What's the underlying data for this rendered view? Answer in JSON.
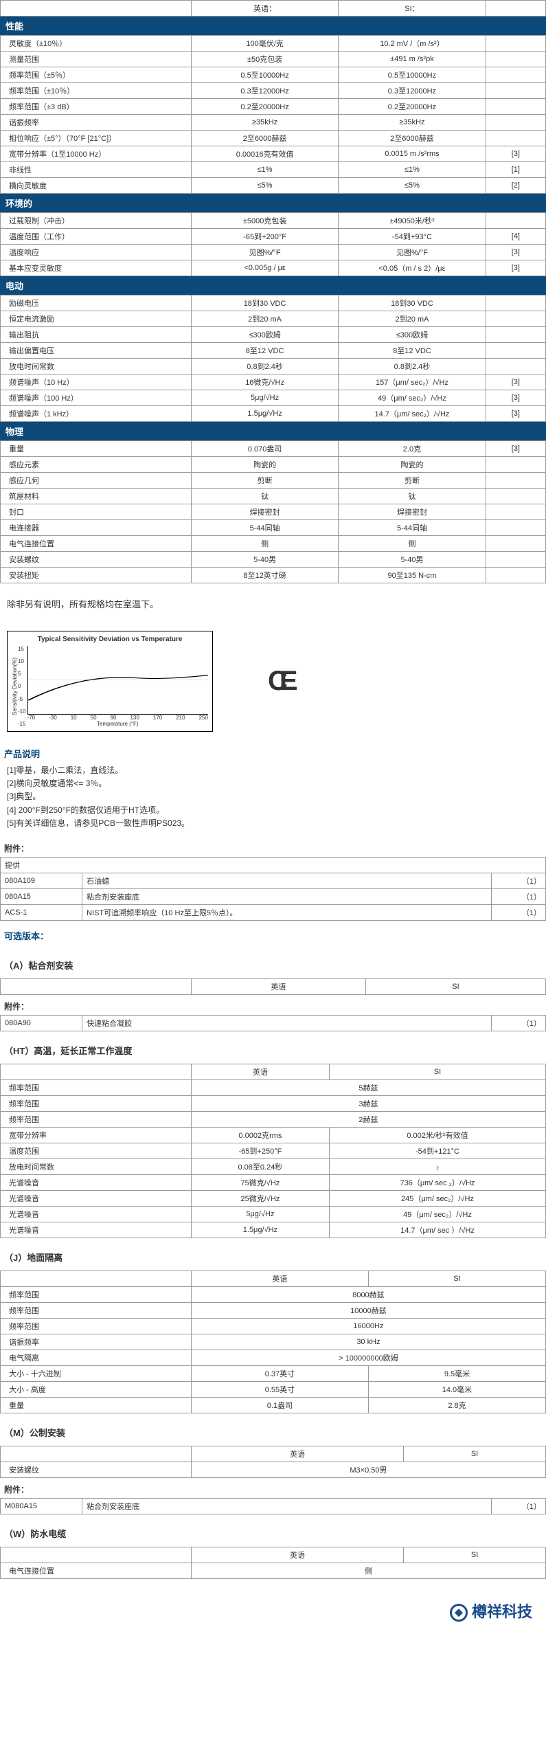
{
  "headers": {
    "en": "英语：",
    "si": "SI："
  },
  "sections": {
    "perf": "性能",
    "env": "环境的",
    "elec": "电动",
    "phys": "物理"
  },
  "perf": [
    {
      "l": "灵敏度（±10％）",
      "e": "100毫伏/克",
      "s": "10.2 mV /（m /s²）",
      "n": ""
    },
    {
      "l": "测量范围",
      "e": "±50克包装",
      "s": "±491 m /s²pk",
      "n": ""
    },
    {
      "l": "频率范围（±5％）",
      "e": "0.5至10000Hz",
      "s": "0.5至10000Hz",
      "n": ""
    },
    {
      "l": "频率范围（±10％）",
      "e": "0.3至12000Hz",
      "s": "0.3至12000Hz",
      "n": ""
    },
    {
      "l": "频率范围（±3 dB）",
      "e": "0.2至20000Hz",
      "s": "0.2至20000Hz",
      "n": ""
    },
    {
      "l": "谐振频率",
      "e": "≥35kHz",
      "s": "≥35kHz",
      "n": ""
    },
    {
      "l": "相位响应（±5°）（70°F [21°C]）",
      "e": "2至6000赫兹",
      "s": "2至6000赫兹",
      "n": ""
    },
    {
      "l": "宽带分辨率（1至10000 Hz）",
      "e": "0.00016克有效值",
      "s": "0.0015 m /s²rms",
      "n": "[3]"
    },
    {
      "l": "非线性",
      "e": "≤1%",
      "s": "≤1%",
      "n": "[1]"
    },
    {
      "l": "横向灵敏度",
      "e": "≤5%",
      "s": "≤5%",
      "n": "[2]"
    }
  ],
  "env": [
    {
      "l": "过载限制（冲击）",
      "e": "±5000克包装",
      "s": "±49050米/秒²",
      "n": ""
    },
    {
      "l": "温度范围（工作）",
      "e": "-65到+200°F",
      "s": "-54到+93°C",
      "n": "[4]"
    },
    {
      "l": "温度响应",
      "e": "见图%/°F",
      "s": "见图%/°F",
      "n": "[3]"
    },
    {
      "l": "基本应变灵敏度",
      "e": "<0.005g / με",
      "s": "<0.05（m / s 2）/με",
      "n": "[3]"
    }
  ],
  "elec": [
    {
      "l": "励磁电压",
      "e": "18到30 VDC",
      "s": "18到30 VDC",
      "n": ""
    },
    {
      "l": "恒定电流激励",
      "e": "2到20 mA",
      "s": "2到20 mA",
      "n": ""
    },
    {
      "l": "输出阻抗",
      "e": "≤300欧姆",
      "s": "≤300欧姆",
      "n": ""
    },
    {
      "l": "输出偏置电压",
      "e": "8至12 VDC",
      "s": "8至12 VDC",
      "n": ""
    },
    {
      "l": "放电时间常数",
      "e": "0.8到2.4秒",
      "s": "0.8到2.4秒",
      "n": ""
    },
    {
      "l": "频谱噪声（10 Hz）",
      "e": "16微克/√Hz",
      "s": "157（μm/ sec₂）/√Hz",
      "n": "[3]"
    },
    {
      "l": "频谱噪声（100 Hz）",
      "e": "5μg/√Hz",
      "s": "49（μm/ sec₂）/√Hz",
      "n": "[3]"
    },
    {
      "l": "频谱噪声（1 kHz）",
      "e": "1.5μg/√Hz",
      "s": "14.7（μm/ sec₂）/√Hz",
      "n": "[3]"
    }
  ],
  "phys": [
    {
      "l": "重量",
      "e": "0.070盎司",
      "s": "2.0克",
      "n": "[3]"
    },
    {
      "l": "感应元素",
      "e": "陶瓷的",
      "s": "陶瓷的",
      "n": ""
    },
    {
      "l": "感应几何",
      "e": "剪断",
      "s": "剪断",
      "n": ""
    },
    {
      "l": "筑屋材料",
      "e": "钛",
      "s": "钛",
      "n": ""
    },
    {
      "l": "封口",
      "e": "焊接密封",
      "s": "焊接密封",
      "n": ""
    },
    {
      "l": "电连接器",
      "e": "5-44同轴",
      "s": "5-44同轴",
      "n": ""
    },
    {
      "l": "电气连接位置",
      "e": "侧",
      "s": "侧",
      "n": ""
    },
    {
      "l": "安装螺纹",
      "e": "5-40男",
      "s": "5-40男",
      "n": ""
    },
    {
      "l": "安装扭矩",
      "e": "8至12英寸磅",
      "s": "90至135 N-cm",
      "n": ""
    }
  ],
  "note": "除非另有说明，所有规格均在室温下。",
  "chart": {
    "title": "Typical Sensitivity Deviation vs Temperature",
    "ylabel": "Sensitivity Deviation(%)",
    "xlabel": "Temperature (°F)",
    "yticks": [
      "15",
      "10",
      "5",
      "0",
      "-5",
      "-10",
      "-15"
    ],
    "xticks": [
      "-70",
      "-30",
      "10",
      "50",
      "90",
      "130",
      "170",
      "210",
      "250"
    ]
  },
  "ce": "CE",
  "prodNotesTitle": "产品说明",
  "prodNotes": [
    "[1]零基，最小二乘法，直线法。",
    "[2]横向灵敏度通常<= 3％。",
    "[3]典型。",
    "[4] 200°F到250°F的数据仅适用于HT选项。",
    "[5]有关详细信息，请参见PCB一致性声明PS023。"
  ],
  "accTitle": "附件：",
  "accHead": "提供",
  "acc": [
    {
      "p": "080A109",
      "d": "石油蜡",
      "q": "（1）"
    },
    {
      "p": "080A15",
      "d": "粘合剂安装座底",
      "q": "（1）"
    },
    {
      "p": "ACS-1",
      "d": "NIST可追溯频率响应（10 Hz至上限5％点）。",
      "q": "（1）"
    }
  ],
  "optTitle": "可选版本：",
  "verA": {
    "title": "（A）粘合剂安装",
    "headers": {
      "e": "英语",
      "s": "SI"
    },
    "accTitle": "附件：",
    "acc": [
      {
        "p": "080A90",
        "d": "快速粘合凝胶",
        "q": "（1）"
      }
    ]
  },
  "verHT": {
    "title": "（HT）高温，延长正常工作温度",
    "headers": {
      "e": "英语",
      "s": "SI"
    },
    "rows": [
      {
        "l": "频率范围",
        "e": "5赫兹",
        "s": ""
      },
      {
        "l": "频率范围",
        "e": "3赫兹",
        "s": ""
      },
      {
        "l": "频率范围",
        "e": "2赫兹",
        "s": ""
      },
      {
        "l": "宽带分辨率",
        "e": "0.0002克rms",
        "s": "0.002米/秒²有效值"
      },
      {
        "l": "温度范围",
        "e": "-65到+250°F",
        "s": "-54到+121°C"
      },
      {
        "l": "放电时间常数",
        "e": "0.08至0.24秒",
        "s": "₂"
      },
      {
        "l": "光谱噪音",
        "e": "75微克/√Hz",
        "s": "736（μm/ sec ₂）/√Hz"
      },
      {
        "l": "光谱噪音",
        "e": "25微克/√Hz",
        "s": "245（μm/ sec₂）/√Hz"
      },
      {
        "l": "光谱噪音",
        "e": "5μg/√Hz",
        "s": "49（μm/ sec₂）/√Hz"
      },
      {
        "l": "光谱噪音",
        "e": "1.5μg/√Hz",
        "s": "14.7（μm/ sec ）/√Hz"
      }
    ]
  },
  "verJ": {
    "title": "（J）地面隔离",
    "headers": {
      "e": "英语",
      "s": "SI"
    },
    "rows": [
      {
        "l": "频率范围",
        "e": "8000赫兹",
        "s": ""
      },
      {
        "l": "频率范围",
        "e": "10000赫兹",
        "s": ""
      },
      {
        "l": "频率范围",
        "e": "16000Hz",
        "s": ""
      },
      {
        "l": "谐振频率",
        "e": "30 kHz",
        "s": ""
      },
      {
        "l": "电气隔离",
        "e": "> 100000000欧姆",
        "s": ""
      },
      {
        "l": "大小 - 十六进制",
        "e": "0.37英寸",
        "s": "9.5毫米"
      },
      {
        "l": "大小 - 高度",
        "e": "0.55英寸",
        "s": "14.0毫米"
      },
      {
        "l": "重量",
        "e": "0.1盎司",
        "s": "2.8克"
      }
    ]
  },
  "verM": {
    "title": "（M）公制安装",
    "headers": {
      "e": "英语",
      "s": "SI"
    },
    "rows": [
      {
        "l": "安装螺纹",
        "e": "M3×0.50男",
        "s": ""
      }
    ],
    "accTitle": "附件：",
    "acc": [
      {
        "p": "M080A15",
        "d": "粘合剂安装座底",
        "q": "（1）"
      }
    ]
  },
  "verW": {
    "title": "（W）防水电缆",
    "headers": {
      "e": "英语",
      "s": "SI"
    },
    "rows": [
      {
        "l": "电气连接位置",
        "e": "侧",
        "s": ""
      }
    ]
  },
  "logo": "樽祥科技"
}
